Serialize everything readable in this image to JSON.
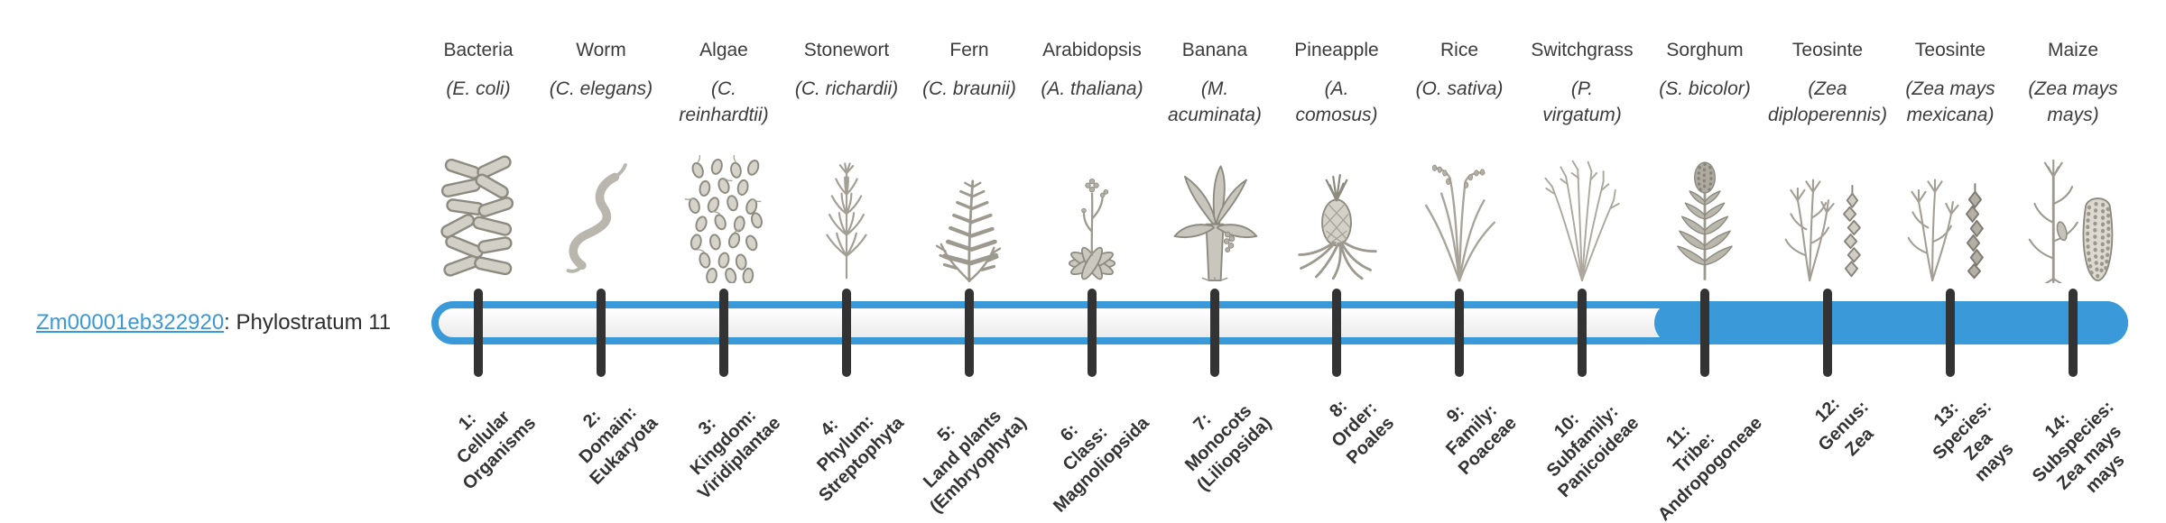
{
  "gene": {
    "id": "Zm00001eb322920",
    "stratum_text": ": Phylostratum 11"
  },
  "timeline": {
    "accent_color": "#3a99d9",
    "tick_color": "#333333",
    "total_strata": 14,
    "highlight_from_stratum": 11
  },
  "organisms": [
    {
      "name": "Bacteria",
      "sci_lines": [
        "(E. coli)"
      ],
      "icon": "bacteria-icon",
      "stratum_lines": [
        "1:",
        "Cellular",
        "Organisms"
      ]
    },
    {
      "name": "Worm",
      "sci_lines": [
        "(C. elegans)"
      ],
      "icon": "worm-icon",
      "stratum_lines": [
        "2:",
        "Domain:",
        "Eukaryota"
      ]
    },
    {
      "name": "Algae",
      "sci_lines": [
        "(C.",
        "reinhardtii)"
      ],
      "icon": "algae-icon",
      "stratum_lines": [
        "3:",
        "Kingdom:",
        "Viridiplantae"
      ]
    },
    {
      "name": "Stonewort",
      "sci_lines": [
        "(C. richardii)"
      ],
      "icon": "stonewort-icon",
      "stratum_lines": [
        "4:",
        "Phylum:",
        "Streptophyta"
      ]
    },
    {
      "name": "Fern",
      "sci_lines": [
        "(C. braunii)"
      ],
      "icon": "fern-icon",
      "stratum_lines": [
        "5:",
        "Land plants",
        "(Embryophyta)"
      ]
    },
    {
      "name": "Arabidopsis",
      "sci_lines": [
        "(A. thaliana)"
      ],
      "icon": "arabidopsis-icon",
      "stratum_lines": [
        "6:",
        "Class:",
        "Magnoliopsida"
      ]
    },
    {
      "name": "Banana",
      "sci_lines": [
        "(M.",
        "acuminata)"
      ],
      "icon": "banana-icon",
      "stratum_lines": [
        "7:",
        "Monocots",
        "(Liliopsida)"
      ]
    },
    {
      "name": "Pineapple",
      "sci_lines": [
        "(A.",
        "comosus)"
      ],
      "icon": "pineapple-icon",
      "stratum_lines": [
        "8:",
        "Order:",
        "Poales"
      ]
    },
    {
      "name": "Rice",
      "sci_lines": [
        "(O. sativa)"
      ],
      "icon": "rice-icon",
      "stratum_lines": [
        "9:",
        "Family:",
        "Poaceae"
      ]
    },
    {
      "name": "Switchgrass",
      "sci_lines": [
        "(P.",
        "virgatum)"
      ],
      "icon": "switchgrass-icon",
      "stratum_lines": [
        "10:",
        "Subfamily:",
        "Panicoideae"
      ]
    },
    {
      "name": "Sorghum",
      "sci_lines": [
        "(S. bicolor)"
      ],
      "icon": "sorghum-icon",
      "stratum_lines": [
        "11:",
        "Tribe:",
        "Andropogoneae"
      ]
    },
    {
      "name": "Teosinte",
      "sci_lines": [
        "(Zea",
        "diploperennis)"
      ],
      "icon": "teosinte-diploperennis-icon",
      "stratum_lines": [
        "12:",
        "Genus:",
        "Zea"
      ]
    },
    {
      "name": "Teosinte",
      "sci_lines": [
        "(Zea mays",
        "mexicana)"
      ],
      "icon": "teosinte-mexicana-icon",
      "stratum_lines": [
        "13:",
        "Species:",
        "Zea",
        "mays"
      ]
    },
    {
      "name": "Maize",
      "sci_lines": [
        "(Zea mays",
        "mays)"
      ],
      "icon": "maize-icon",
      "stratum_lines": [
        "14:",
        "Subspecies:",
        "Zea mays",
        "mays"
      ]
    }
  ]
}
